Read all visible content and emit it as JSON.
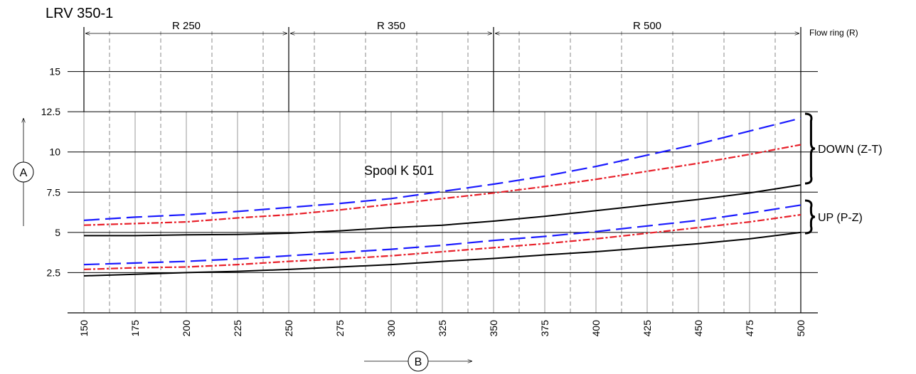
{
  "chart_data": {
    "type": "line",
    "title": "LRV 350-1",
    "x": [
      150,
      175,
      200,
      225,
      250,
      275,
      300,
      325,
      350,
      375,
      400,
      425,
      450,
      475,
      500
    ],
    "xlim": [
      150,
      500
    ],
    "ylim": [
      0,
      17.5
    ],
    "y_ticks": [
      "2.5",
      "5",
      "7.5",
      "10",
      "12.5",
      "15"
    ],
    "y_tick_values": [
      2.5,
      5,
      7.5,
      10,
      12.5,
      15
    ],
    "x_tick_labels": [
      "150",
      "175",
      "200",
      "225",
      "250",
      "275",
      "300",
      "325",
      "350",
      "375",
      "400",
      "425",
      "450",
      "475",
      "500"
    ],
    "minor_x_grid": [
      162.5,
      187.5,
      212.5,
      237.5,
      262.5,
      287.5,
      312.5,
      337.5,
      362.5,
      387.5,
      412.5,
      437.5,
      462.5,
      487.5
    ],
    "xlabel": "B",
    "ylabel": "A",
    "grid": true,
    "ranges": [
      {
        "label": "R 250",
        "from": 150,
        "to": 250
      },
      {
        "label": "R 350",
        "from": 250,
        "to": 350
      },
      {
        "label": "R 500",
        "from": 350,
        "to": 500
      }
    ],
    "range_header": "Flow ring (R)",
    "annotations": {
      "spool": "Spool K 501",
      "down": "DOWN (Z-T)",
      "up": "UP (P-Z)"
    },
    "series": [
      {
        "group": "down",
        "color": "#1a1aff",
        "style": "long-dash",
        "values": [
          5.75,
          5.95,
          6.1,
          6.3,
          6.55,
          6.8,
          7.1,
          7.55,
          8.0,
          8.5,
          9.1,
          9.8,
          10.5,
          11.3,
          12.1
        ]
      },
      {
        "group": "down",
        "color": "#e8202a",
        "style": "dash",
        "values": [
          5.45,
          5.55,
          5.65,
          5.9,
          6.1,
          6.4,
          6.75,
          7.1,
          7.45,
          7.85,
          8.3,
          8.8,
          9.3,
          9.85,
          10.45
        ]
      },
      {
        "group": "down",
        "color": "#000000",
        "style": "solid",
        "values": [
          4.8,
          4.8,
          4.85,
          4.87,
          4.95,
          5.1,
          5.3,
          5.45,
          5.7,
          6.0,
          6.35,
          6.7,
          7.05,
          7.45,
          7.95
        ]
      },
      {
        "group": "up",
        "color": "#1a1aff",
        "style": "long-dash",
        "values": [
          3.0,
          3.1,
          3.2,
          3.35,
          3.55,
          3.75,
          3.95,
          4.2,
          4.5,
          4.75,
          5.05,
          5.4,
          5.75,
          6.2,
          6.7
        ]
      },
      {
        "group": "up",
        "color": "#e8202a",
        "style": "dash",
        "values": [
          2.7,
          2.8,
          2.85,
          3.0,
          3.2,
          3.35,
          3.55,
          3.8,
          4.05,
          4.3,
          4.6,
          4.95,
          5.3,
          5.65,
          6.1
        ]
      },
      {
        "group": "up",
        "color": "#000000",
        "style": "solid",
        "values": [
          2.3,
          2.4,
          2.5,
          2.58,
          2.7,
          2.85,
          3.0,
          3.2,
          3.38,
          3.6,
          3.8,
          4.05,
          4.3,
          4.6,
          5.0
        ]
      }
    ]
  }
}
